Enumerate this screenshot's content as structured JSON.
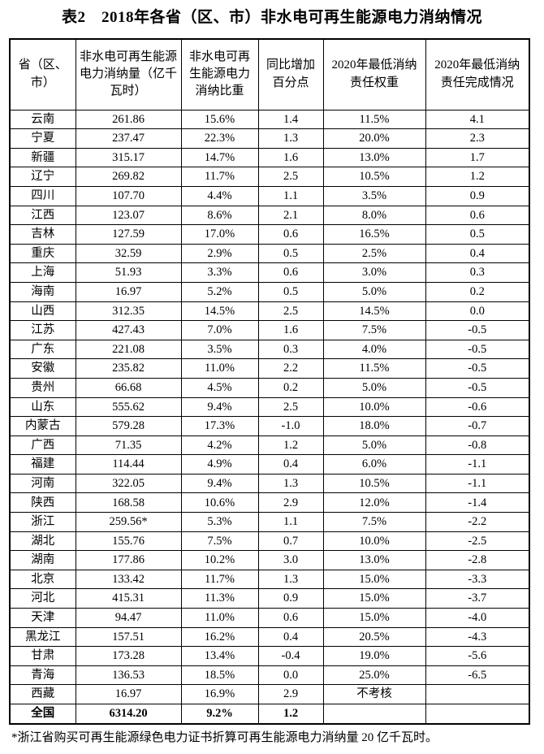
{
  "title": "表2　2018年各省（区、市）非水电可再生能源电力消纳情况",
  "footnote": "*浙江省购买可再生能源绿色电力证书折算可再生能源电力消纳量 20 亿千瓦时。",
  "table": {
    "headers": [
      "省（区、市）",
      "非水电可再生能源电力消纳量（亿千瓦时）",
      "非水电可再生能源电力消纳比重",
      "同比增加百分点",
      "2020年最低消纳责任权重",
      "2020年最低消纳责任完成情况"
    ],
    "rows": [
      [
        "云南",
        "261.86",
        "15.6%",
        "1.4",
        "11.5%",
        "4.1"
      ],
      [
        "宁夏",
        "237.47",
        "22.3%",
        "1.3",
        "20.0%",
        "2.3"
      ],
      [
        "新疆",
        "315.17",
        "14.7%",
        "1.6",
        "13.0%",
        "1.7"
      ],
      [
        "辽宁",
        "269.82",
        "11.7%",
        "2.5",
        "10.5%",
        "1.2"
      ],
      [
        "四川",
        "107.70",
        "4.4%",
        "1.1",
        "3.5%",
        "0.9"
      ],
      [
        "江西",
        "123.07",
        "8.6%",
        "2.1",
        "8.0%",
        "0.6"
      ],
      [
        "吉林",
        "127.59",
        "17.0%",
        "0.6",
        "16.5%",
        "0.5"
      ],
      [
        "重庆",
        "32.59",
        "2.9%",
        "0.5",
        "2.5%",
        "0.4"
      ],
      [
        "上海",
        "51.93",
        "3.3%",
        "0.6",
        "3.0%",
        "0.3"
      ],
      [
        "海南",
        "16.97",
        "5.2%",
        "0.5",
        "5.0%",
        "0.2"
      ],
      [
        "山西",
        "312.35",
        "14.5%",
        "2.5",
        "14.5%",
        "0.0"
      ],
      [
        "江苏",
        "427.43",
        "7.0%",
        "1.6",
        "7.5%",
        "-0.5"
      ],
      [
        "广东",
        "221.08",
        "3.5%",
        "0.3",
        "4.0%",
        "-0.5"
      ],
      [
        "安徽",
        "235.82",
        "11.0%",
        "2.2",
        "11.5%",
        "-0.5"
      ],
      [
        "贵州",
        "66.68",
        "4.5%",
        "0.2",
        "5.0%",
        "-0.5"
      ],
      [
        "山东",
        "555.62",
        "9.4%",
        "2.5",
        "10.0%",
        "-0.6"
      ],
      [
        "内蒙古",
        "579.28",
        "17.3%",
        "-1.0",
        "18.0%",
        "-0.7"
      ],
      [
        "广西",
        "71.35",
        "4.2%",
        "1.2",
        "5.0%",
        "-0.8"
      ],
      [
        "福建",
        "114.44",
        "4.9%",
        "0.4",
        "6.0%",
        "-1.1"
      ],
      [
        "河南",
        "322.05",
        "9.4%",
        "1.3",
        "10.5%",
        "-1.1"
      ],
      [
        "陕西",
        "168.58",
        "10.6%",
        "2.9",
        "12.0%",
        "-1.4"
      ],
      [
        "浙江",
        "259.56*",
        "5.3%",
        "1.1",
        "7.5%",
        "-2.2"
      ],
      [
        "湖北",
        "155.76",
        "7.5%",
        "0.7",
        "10.0%",
        "-2.5"
      ],
      [
        "湖南",
        "177.86",
        "10.2%",
        "3.0",
        "13.0%",
        "-2.8"
      ],
      [
        "北京",
        "133.42",
        "11.7%",
        "1.3",
        "15.0%",
        "-3.3"
      ],
      [
        "河北",
        "415.31",
        "11.3%",
        "0.9",
        "15.0%",
        "-3.7"
      ],
      [
        "天津",
        "94.47",
        "11.0%",
        "0.6",
        "15.0%",
        "-4.0"
      ],
      [
        "黑龙江",
        "157.51",
        "16.2%",
        "0.4",
        "20.5%",
        "-4.3"
      ],
      [
        "甘肃",
        "173.28",
        "13.4%",
        "-0.4",
        "19.0%",
        "-5.6"
      ],
      [
        "青海",
        "136.53",
        "18.5%",
        "0.0",
        "25.0%",
        "-6.5"
      ],
      [
        "西藏",
        "16.97",
        "16.9%",
        "2.9",
        "不考核",
        ""
      ]
    ],
    "total": [
      "全国",
      "6314.20",
      "9.2%",
      "1.2",
      "",
      ""
    ]
  }
}
